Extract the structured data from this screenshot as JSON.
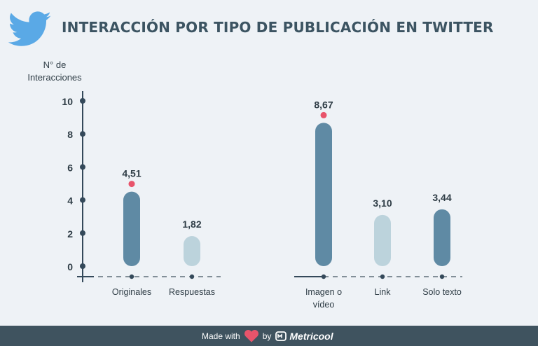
{
  "title": "INTERACCIÓN POR TIPO DE PUBLICACIÓN EN TWITTER",
  "logo_icon": "twitter-bird-icon",
  "colors": {
    "dark_bar": "#5f8aa4",
    "light_bar": "#bcd3dc",
    "marker": "#e8546b",
    "axis": "#34495a",
    "footer_bg": "#3f535f"
  },
  "chart_data": {
    "type": "bar",
    "ylabel_lines": [
      "N° de",
      "Interacciones"
    ],
    "ylim": [
      0,
      10
    ],
    "yticks": [
      0,
      2,
      4,
      6,
      8,
      10
    ],
    "groups": [
      {
        "bars": [
          {
            "label": [
              "Originales"
            ],
            "value": 4.51,
            "value_label": "4,51",
            "highlight": true,
            "tone": "dark"
          },
          {
            "label": [
              "Respuestas"
            ],
            "value": 1.82,
            "value_label": "1,82",
            "highlight": false,
            "tone": "light"
          }
        ]
      },
      {
        "bars": [
          {
            "label": [
              "Imagen o",
              "vídeo"
            ],
            "value": 8.67,
            "value_label": "8,67",
            "highlight": true,
            "tone": "dark"
          },
          {
            "label": [
              "Link"
            ],
            "value": 3.1,
            "value_label": "3,10",
            "highlight": false,
            "tone": "light"
          },
          {
            "label": [
              "Solo texto"
            ],
            "value": 3.44,
            "value_label": "3,44",
            "highlight": false,
            "tone": "dark"
          }
        ]
      }
    ]
  },
  "footer": {
    "made_with": "Made with",
    "by": "by",
    "brand": "Metricool"
  }
}
